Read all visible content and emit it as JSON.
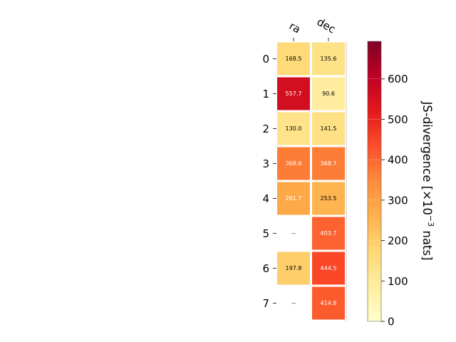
{
  "chart_data": {
    "type": "heatmap",
    "columns": [
      "ra",
      "dec"
    ],
    "rows": [
      "0",
      "1",
      "2",
      "3",
      "4",
      "5",
      "6",
      "7"
    ],
    "values": [
      [
        168.5,
        135.6
      ],
      [
        557.7,
        90.6
      ],
      [
        130.0,
        141.5
      ],
      [
        368.6,
        368.7
      ],
      [
        281.7,
        253.5
      ],
      [
        null,
        403.7
      ],
      [
        197.8,
        444.5
      ],
      [
        null,
        414.8
      ]
    ],
    "cell_labels": [
      [
        "168.5",
        "135.6"
      ],
      [
        "557.7",
        "90.6"
      ],
      [
        "130.0",
        "141.5"
      ],
      [
        "368.6",
        "368.7"
      ],
      [
        "281.7",
        "253.5"
      ],
      [
        "--",
        "403.7"
      ],
      [
        "197.8",
        "444.5"
      ],
      [
        "--",
        "414.8"
      ]
    ],
    "colorbar": {
      "label_main": "JS-divergence [×10",
      "label_exp": "−3",
      "label_tail": " nats]",
      "vmin": 0,
      "vmax": 693,
      "ticks": [
        "0",
        "100",
        "200",
        "300",
        "400",
        "500",
        "600"
      ],
      "tick_values": [
        0,
        100,
        200,
        300,
        400,
        500,
        600
      ],
      "colormap": "YlOrRd",
      "colormap_stops": [
        "#ffffcc",
        "#ffeda0",
        "#fed976",
        "#feb24c",
        "#fd8d3c",
        "#fc4e2a",
        "#e31a1c",
        "#bd0026",
        "#800026"
      ]
    },
    "missing_color": "#ffffff"
  }
}
